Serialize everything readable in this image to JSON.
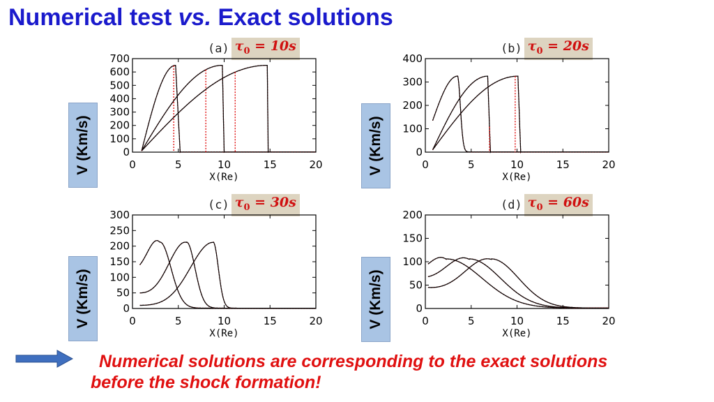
{
  "title": {
    "part1": "Numerical test ",
    "vs": "vs.",
    "part2": " Exact solutions"
  },
  "ylabel_text": "V (Km/s)",
  "conclusion": {
    "line1": "Numerical solutions are corresponding to the exact solutions",
    "line2": "before the shock formation!"
  },
  "colors": {
    "title": "#1a1acc",
    "exact_curve": "#000000",
    "numerical_curve": "#e01010",
    "tau_box": "#ddd4c0",
    "ylabel_box": "#a9c4e4",
    "arrow": "#3f6fbf",
    "conclusion": "#e01010"
  },
  "arrow_icon": "right-arrow-icon",
  "chart_data": [
    {
      "type": "line",
      "panel": "(a)",
      "tau_symbol": "τ",
      "tau_sub": "0",
      "tau_rhs": " = 10s",
      "xlabel": "X(Re)",
      "ylabel": "V (Km/s)",
      "xlim": [
        0,
        20
      ],
      "ylim": [
        0,
        700
      ],
      "xticks": [
        0,
        5,
        10,
        15,
        20
      ],
      "yticks": [
        0,
        100,
        200,
        300,
        400,
        500,
        600,
        700
      ],
      "profile": "shock",
      "params": [
        {
          "x0": 1.0,
          "xp": 4.7,
          "xe": 5.2,
          "peak": 650,
          "x_num": 4.5
        },
        {
          "x0": 1.0,
          "xp": 9.8,
          "xe": 10.0,
          "peak": 650,
          "x_num": 8.0
        },
        {
          "x0": 1.0,
          "xp": 14.7,
          "xe": 14.8,
          "peak": 650,
          "x_num": 11.2
        }
      ]
    },
    {
      "type": "line",
      "panel": "(b)",
      "tau_symbol": "τ",
      "tau_sub": "0",
      "tau_rhs": " = 20s",
      "xlabel": "X(Re)",
      "ylabel": "V (Km/s)",
      "xlim": [
        0,
        20
      ],
      "ylim": [
        0,
        400
      ],
      "xticks": [
        0,
        5,
        10,
        15,
        20
      ],
      "yticks": [
        0,
        100,
        200,
        300,
        400
      ],
      "profile": "shock",
      "params": [
        {
          "x0": 0.8,
          "xp": 3.5,
          "xe": 5.3,
          "peak": 325,
          "v_start": 135,
          "fall_w": 0.45,
          "x_num": null
        },
        {
          "x0": 0.8,
          "xp": 6.8,
          "xe": 7.1,
          "peak": 325,
          "x_num": 7.0
        },
        {
          "x0": 0.8,
          "xp": 10.1,
          "xe": 10.4,
          "peak": 325,
          "x_num": 9.8
        }
      ]
    },
    {
      "type": "line",
      "panel": "(c)",
      "tau_symbol": "τ",
      "tau_sub": "0",
      "tau_rhs": " = 30s",
      "xlabel": "X(Re)",
      "ylabel": "V (Km/s)",
      "xlim": [
        0,
        20
      ],
      "ylim": [
        0,
        300
      ],
      "xticks": [
        0,
        5,
        10,
        15,
        20
      ],
      "yticks": [
        0,
        50,
        100,
        150,
        200,
        250,
        300
      ],
      "profile": "smooth",
      "params": [
        {
          "x0": 0.8,
          "xp": 3.0,
          "peak": 212,
          "v_start": 140,
          "w_left": 2.0,
          "w_right": 1.7
        },
        {
          "x0": 0.8,
          "xp": 5.9,
          "peak": 212,
          "v_start": 50,
          "w_left": 2.7,
          "w_right": 1.3
        },
        {
          "x0": 0.8,
          "xp": 8.8,
          "peak": 212,
          "v_start": 10,
          "w_left": 3.5,
          "w_right": 0.8
        }
      ]
    },
    {
      "type": "line",
      "panel": "(d)",
      "tau_symbol": "τ",
      "tau_sub": "0",
      "tau_rhs": " = 60s",
      "xlabel": "X(Re)",
      "ylabel": "V (Km/s)",
      "xlim": [
        0,
        20
      ],
      "ylim": [
        0,
        200
      ],
      "xticks": [
        0,
        5,
        10,
        15,
        20
      ],
      "yticks": [
        0,
        50,
        100,
        150,
        200
      ],
      "profile": "smooth",
      "params": [
        {
          "x0": 0.3,
          "xp": 2.3,
          "peak": 105,
          "v_start": 95,
          "w_left": 3.0,
          "w_right": 5.5
        },
        {
          "x0": 0.3,
          "xp": 4.8,
          "peak": 105,
          "v_start": 68,
          "w_left": 3.5,
          "w_right": 4.8
        },
        {
          "x0": 0.3,
          "xp": 7.2,
          "peak": 105,
          "v_start": 45,
          "w_left": 4.0,
          "w_right": 4.2
        }
      ]
    }
  ]
}
